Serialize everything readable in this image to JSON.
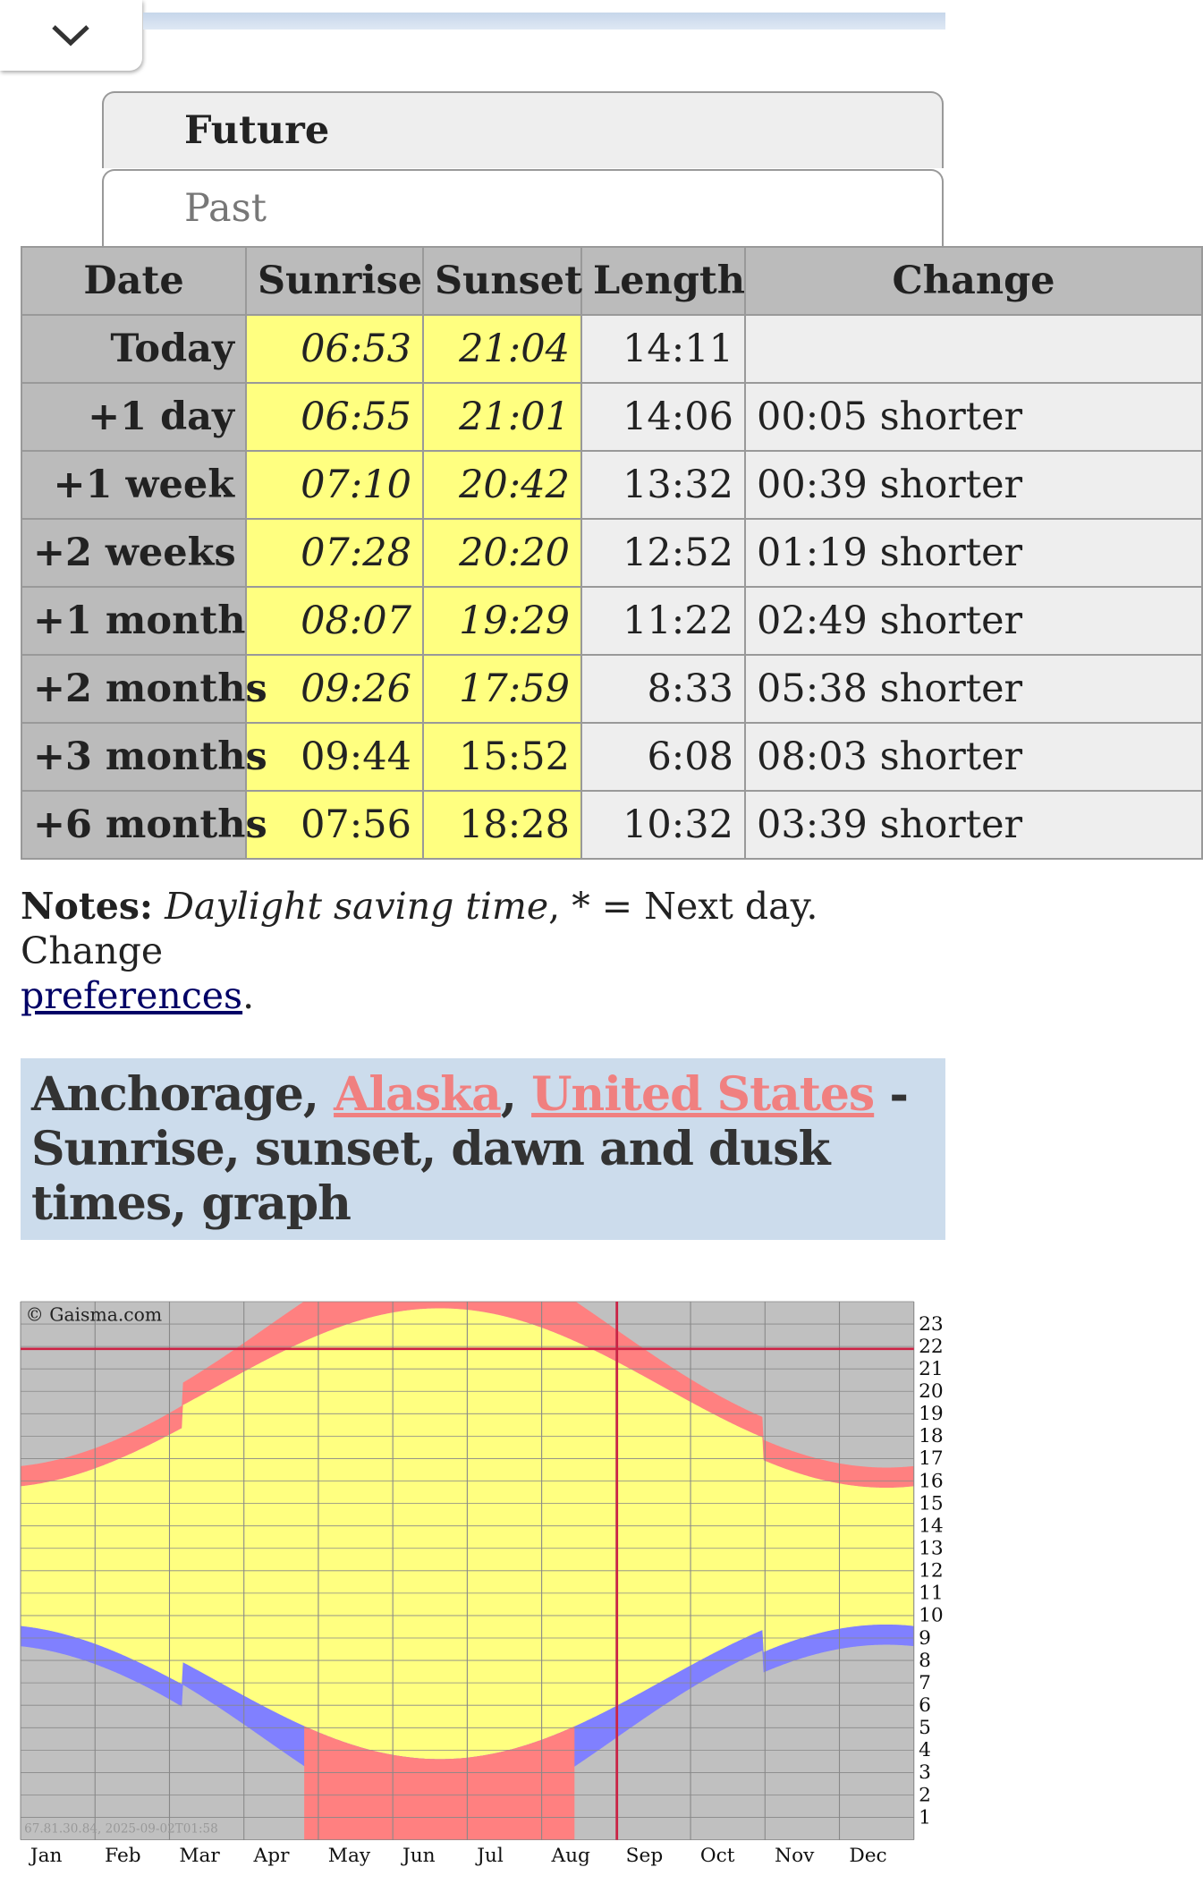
{
  "tabs": [
    "Future",
    "Past"
  ],
  "table": {
    "header": [
      "Date",
      "Sunrise",
      "Sunset",
      "Length",
      "Change"
    ],
    "rows": [
      [
        "Today",
        "06:53",
        "21:04",
        "14:11",
        ""
      ],
      [
        "+1 day",
        "06:55",
        "21:01",
        "14:06",
        "00:05 shorter"
      ],
      [
        "+1 week",
        "07:10",
        "20:42",
        "13:32",
        "00:39 shorter"
      ],
      [
        "+2 weeks",
        "07:28",
        "20:20",
        "12:52",
        "01:19 shorter"
      ],
      [
        "+1 month",
        "08:07",
        "19:29",
        "11:22",
        "02:49 shorter"
      ],
      [
        "+2 months",
        "09:26",
        "17:59",
        "8:33",
        "05:38 shorter"
      ],
      [
        "+3 months",
        "09:44",
        "15:52",
        "6:08",
        "08:03 shorter"
      ],
      [
        "+6 months",
        "07:56",
        "18:28",
        "10:32",
        "03:39 shorter"
      ]
    ]
  },
  "notes": {
    "label": "Notes:",
    "dst": "Daylight saving time",
    "text": ", * = Next day. Change",
    "link": "preferences",
    "end": "."
  },
  "heading": {
    "city": "Anchorage,",
    "state": "Alaska",
    "comma": ",",
    "country": "United States",
    "rest": "- Sunrise, sunset, dawn and dusk times, graph"
  },
  "graph": {
    "copyright": "© Gaisma.com",
    "stamp": "67.81.30.84, 2025-09-02T01:58",
    "hours": [
      23,
      22,
      21,
      20,
      19,
      18,
      17,
      16,
      15,
      14,
      13,
      12,
      11,
      10,
      9,
      8,
      7,
      6,
      5,
      4,
      3,
      2,
      1
    ],
    "months": [
      "Jan",
      "Feb",
      "Mar",
      "Apr",
      "May",
      "Jun",
      "Jul",
      "Aug",
      "Sep",
      "Oct",
      "Nov",
      "Dec"
    ]
  }
}
